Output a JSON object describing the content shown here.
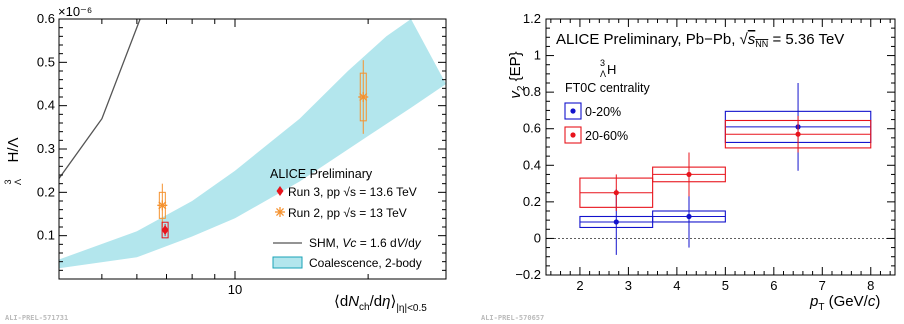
{
  "chart_data": [
    {
      "type": "scatter",
      "xscale": "log",
      "xlim": [
        4,
        30
      ],
      "ylim": [
        0,
        0.6
      ],
      "y_multiplier": "×10⁻⁶",
      "ylabel": "³ΛH/Λ",
      "xlabel": "⟨dNch/dη⟩|η|<0.5",
      "xtick_labels": [
        {
          "x": 10,
          "label": "10"
        }
      ],
      "ytick_labels": [
        {
          "y": 0.1,
          "label": "0.1"
        },
        {
          "y": 0.2,
          "label": "0.2"
        },
        {
          "y": 0.3,
          "label": "0.3"
        },
        {
          "y": 0.4,
          "label": "0.4"
        },
        {
          "y": 0.5,
          "label": "0.5"
        },
        {
          "y": 0.6,
          "label": "0.6"
        }
      ],
      "title": "ALICE Preliminary",
      "watermark": "ALI-PREL-571731",
      "series": [
        {
          "name": "Run 3, pp √s = 13.6 TeV",
          "marker": "diamond",
          "color": "#e8141c",
          "points": [
            {
              "x": 6.95,
              "y": 0.113,
              "err": 0.014,
              "sys": 0.018
            }
          ]
        },
        {
          "name": "Run 2, pp √s = 13 TeV",
          "marker": "star",
          "color": "#f5922f",
          "points": [
            {
              "x": 6.85,
              "y": 0.17,
              "err": 0.05,
              "sys": 0.03
            },
            {
              "x": 19.5,
              "y": 0.42,
              "err": 0.085,
              "sys": 0.055
            }
          ]
        },
        {
          "name": "SHM, Vc = 1.6 dV/dy",
          "type": "line",
          "color": "#555555",
          "points": [
            {
              "x": 4,
              "y": 0.232
            },
            {
              "x": 5,
              "y": 0.37
            },
            {
              "x": 6.1,
              "y": 0.6
            }
          ]
        },
        {
          "name": "Coalescence, 2-body",
          "type": "band",
          "color": "#b3e6ed",
          "lower": [
            {
              "x": 4,
              "y": 0.025
            },
            {
              "x": 6,
              "y": 0.05
            },
            {
              "x": 8,
              "y": 0.098
            },
            {
              "x": 10,
              "y": 0.14
            },
            {
              "x": 14,
              "y": 0.225
            },
            {
              "x": 20,
              "y": 0.33
            },
            {
              "x": 25,
              "y": 0.395
            },
            {
              "x": 30,
              "y": 0.45
            }
          ],
          "upper": [
            {
              "x": 4,
              "y": 0.045
            },
            {
              "x": 6,
              "y": 0.11
            },
            {
              "x": 8,
              "y": 0.18
            },
            {
              "x": 10,
              "y": 0.25
            },
            {
              "x": 14,
              "y": 0.37
            },
            {
              "x": 18,
              "y": 0.48
            },
            {
              "x": 22,
              "y": 0.56
            },
            {
              "x": 25,
              "y": 0.6
            }
          ]
        }
      ]
    },
    {
      "type": "scatter",
      "xlim": [
        1.3,
        8.5
      ],
      "ylim": [
        -0.2,
        1.2
      ],
      "ylabel": "v2 {EP}",
      "xlabel": "pT (GeV/c)",
      "xtick_labels": [
        "2",
        "3",
        "4",
        "5",
        "6",
        "7",
        "8"
      ],
      "ytick_labels": [
        "−0.2",
        "0",
        "0.2",
        "0.4",
        "0.6",
        "0.8",
        "1",
        "1.2"
      ],
      "title": "ALICE Preliminary, Pb−Pb, √sNN = 5.36 TeV",
      "subtitle": "³ΛH",
      "legend_title": "FT0C centrality",
      "watermark": "ALI-PREL-570657",
      "series": [
        {
          "name": "0-20%",
          "color": "#1212cc",
          "points": [
            {
              "x": 2.75,
              "x_lo": 2.0,
              "x_hi": 3.5,
              "y": 0.09,
              "err": 0.18,
              "sys": 0.03
            },
            {
              "x": 4.25,
              "x_lo": 3.5,
              "x_hi": 5.0,
              "y": 0.12,
              "err": 0.17,
              "sys": 0.03
            },
            {
              "x": 6.5,
              "x_lo": 5.0,
              "x_hi": 8.0,
              "y": 0.61,
              "err": 0.24,
              "sys": 0.085
            }
          ]
        },
        {
          "name": "20-60%",
          "color": "#e8141c",
          "points": [
            {
              "x": 2.75,
              "x_lo": 2.0,
              "x_hi": 3.5,
              "y": 0.25,
              "err": 0.1,
              "sys": 0.08
            },
            {
              "x": 4.25,
              "x_lo": 3.5,
              "x_hi": 5.0,
              "y": 0.35,
              "err": 0.12,
              "sys": 0.04
            },
            {
              "x": 6.5,
              "x_lo": 5.0,
              "x_hi": 8.0,
              "y": 0.57,
              "err": 0.1,
              "sys": 0.075
            }
          ]
        }
      ]
    }
  ]
}
